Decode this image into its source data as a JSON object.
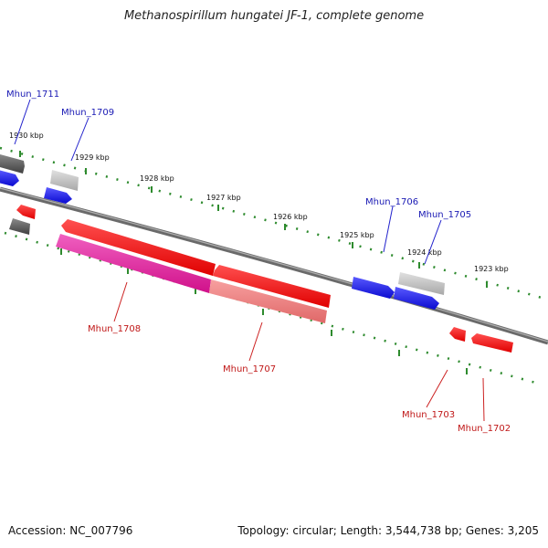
{
  "title": "Methanospirillum hungatei JF-1, complete genome",
  "footer": {
    "accession": "Accession: NC_007796",
    "summary": "Topology: circular; Length: 3,544,738 bp; Genes: 3,205"
  },
  "ticks": [
    {
      "label": "1930 kbp"
    },
    {
      "label": "1929 kbp"
    },
    {
      "label": "1928 kbp"
    },
    {
      "label": "1927 kbp"
    },
    {
      "label": "1926 kbp"
    },
    {
      "label": "1925 kbp"
    },
    {
      "label": "1924 kbp"
    },
    {
      "label": "1923 kbp"
    }
  ],
  "gene_labels": [
    {
      "name": "Mhun_1711",
      "color": "#1a1ab4"
    },
    {
      "name": "Mhun_1709",
      "color": "#1a1ab4"
    },
    {
      "name": "Mhun_1706",
      "color": "#1a1ab4"
    },
    {
      "name": "Mhun_1705",
      "color": "#1a1ab4"
    },
    {
      "name": "Mhun_1708",
      "color": "#c01818"
    },
    {
      "name": "Mhun_1707",
      "color": "#c01818"
    },
    {
      "name": "Mhun_1703",
      "color": "#c01818"
    },
    {
      "name": "Mhun_1702",
      "color": "#c01818"
    }
  ],
  "colors": {
    "backbone": "#7a7a7a",
    "ticks": "#2e8b2e",
    "forward_gene": "#1515e0",
    "reverse_gene": "#ee1010",
    "reverse_gene_light": "#f08080",
    "rna_gene": "#e0199a",
    "other_gene_dark": "#5a5a5a",
    "other_gene_light": "#b8b8b8"
  }
}
